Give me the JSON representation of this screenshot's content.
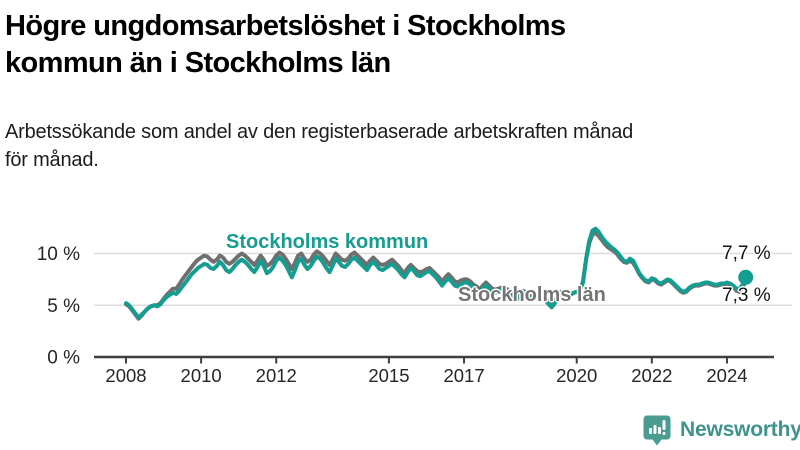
{
  "header": {
    "title_lines": [
      "Högre ungdomsarbetslöshet i Stockholms",
      "kommun än i Stockholms län"
    ],
    "subtitle_lines": [
      "Arbetssökande som andel av den registerbaserade arbetskraften månad",
      "för månad."
    ]
  },
  "chart_data": {
    "type": "line",
    "unit": "%",
    "frequency": "monthly",
    "x_start": "2008-01",
    "x_end": "2024-07",
    "ylim": [
      0,
      13
    ],
    "grid": "horizontal",
    "legend_position": "inline-labels",
    "y_ticks": [
      {
        "label": "0 %",
        "value": 0
      },
      {
        "label": "5 %",
        "value": 5
      },
      {
        "label": "10 %",
        "value": 10
      }
    ],
    "x_ticks": [
      {
        "label": "2008",
        "year": 2008
      },
      {
        "label": "2010",
        "year": 2010
      },
      {
        "label": "2012",
        "year": 2012
      },
      {
        "label": "2015",
        "year": 2015
      },
      {
        "label": "2017",
        "year": 2017
      },
      {
        "label": "2020",
        "year": 2020
      },
      {
        "label": "2022",
        "year": 2022
      },
      {
        "label": "2024",
        "year": 2024
      }
    ],
    "series": [
      {
        "id": "lan",
        "name": "Stockholms län",
        "color": "#6F6F6F",
        "end_dot": false,
        "values": [
          5.1,
          4.9,
          4.5,
          4.1,
          3.7,
          4.0,
          4.4,
          4.7,
          4.9,
          5.0,
          5.0,
          5.2,
          5.6,
          6.0,
          6.3,
          6.6,
          6.6,
          7.0,
          7.5,
          7.9,
          8.3,
          8.7,
          9.1,
          9.4,
          9.6,
          9.8,
          9.7,
          9.4,
          9.2,
          9.4,
          9.8,
          9.6,
          9.2,
          9.0,
          9.2,
          9.5,
          9.8,
          10.0,
          9.8,
          9.5,
          9.2,
          8.9,
          9.3,
          9.8,
          9.4,
          8.8,
          9.0,
          9.3,
          9.8,
          10.1,
          9.9,
          9.5,
          9.0,
          8.5,
          9.1,
          9.8,
          10.0,
          9.5,
          9.2,
          9.4,
          9.9,
          10.2,
          10.0,
          9.7,
          9.3,
          8.9,
          9.4,
          10.0,
          9.7,
          9.4,
          9.3,
          9.5,
          9.9,
          10.1,
          9.8,
          9.5,
          9.2,
          8.9,
          9.3,
          9.6,
          9.3,
          9.0,
          8.9,
          9.0,
          9.2,
          9.4,
          9.1,
          8.8,
          8.4,
          8.1,
          8.6,
          8.9,
          8.6,
          8.3,
          8.2,
          8.3,
          8.5,
          8.6,
          8.3,
          8.0,
          7.7,
          7.3,
          7.7,
          8.0,
          7.7,
          7.3,
          7.2,
          7.4,
          7.5,
          7.5,
          7.3,
          7.0,
          6.8,
          6.5,
          6.9,
          7.2,
          6.9,
          6.6,
          6.5,
          6.6,
          6.7,
          6.7,
          6.5,
          6.2,
          6.0,
          5.8,
          6.2,
          6.4,
          6.1,
          5.9,
          5.8,
          5.9,
          6.0,
          5.9,
          5.6,
          5.3,
          5.1,
          5.4,
          5.9,
          6.3,
          6.1,
          6.0,
          6.1,
          6.2,
          6.3,
          6.4,
          7.3,
          9.4,
          11.0,
          11.8,
          12.0,
          11.7,
          11.3,
          10.9,
          10.6,
          10.4,
          10.2,
          9.9,
          9.5,
          9.2,
          9.1,
          9.3,
          9.1,
          8.6,
          8.0,
          7.6,
          7.3,
          7.2,
          7.5,
          7.4,
          7.1,
          7.0,
          7.2,
          7.4,
          7.3,
          7.0,
          6.7,
          6.4,
          6.2,
          6.3,
          6.6,
          6.8,
          6.9,
          6.9,
          7.0,
          7.1,
          7.1,
          7.0,
          6.9,
          6.9,
          7.0,
          7.0,
          7.1,
          7.0,
          6.8,
          6.4,
          6.3,
          6.7,
          7.3
        ]
      },
      {
        "id": "kommun",
        "name": "Stockholms kommun",
        "color": "#149D90",
        "end_dot": true,
        "values": [
          5.2,
          5.0,
          4.6,
          4.2,
          3.8,
          4.1,
          4.4,
          4.7,
          4.9,
          5.0,
          4.9,
          5.1,
          5.5,
          5.8,
          6.0,
          6.2,
          6.1,
          6.4,
          6.8,
          7.2,
          7.6,
          8.0,
          8.3,
          8.6,
          8.8,
          9.0,
          8.9,
          8.6,
          8.5,
          8.8,
          9.2,
          8.9,
          8.4,
          8.2,
          8.5,
          8.9,
          9.2,
          9.4,
          9.2,
          8.9,
          8.5,
          8.2,
          8.7,
          9.3,
          8.8,
          8.1,
          8.3,
          8.7,
          9.3,
          9.6,
          9.3,
          8.9,
          8.3,
          7.7,
          8.4,
          9.2,
          9.5,
          8.9,
          8.5,
          8.8,
          9.3,
          9.7,
          9.5,
          9.1,
          8.6,
          8.2,
          8.8,
          9.5,
          9.2,
          8.8,
          8.7,
          9.0,
          9.4,
          9.6,
          9.3,
          9.0,
          8.7,
          8.4,
          8.9,
          9.2,
          8.9,
          8.5,
          8.4,
          8.6,
          8.8,
          9.0,
          8.7,
          8.4,
          8.0,
          7.7,
          8.2,
          8.6,
          8.3,
          7.9,
          7.8,
          8.0,
          8.2,
          8.3,
          8.0,
          7.7,
          7.3,
          6.9,
          7.3,
          7.6,
          7.3,
          6.9,
          6.8,
          7.0,
          7.2,
          7.2,
          7.0,
          6.7,
          6.4,
          6.2,
          6.6,
          6.9,
          6.6,
          6.3,
          6.2,
          6.4,
          6.5,
          6.5,
          6.3,
          6.0,
          5.8,
          5.6,
          6.0,
          6.3,
          6.0,
          5.7,
          5.6,
          5.8,
          5.9,
          5.8,
          5.5,
          5.1,
          4.8,
          5.2,
          5.8,
          6.2,
          6.0,
          5.9,
          6.0,
          6.2,
          6.3,
          6.4,
          7.2,
          9.5,
          11.2,
          12.2,
          12.4,
          12.1,
          11.6,
          11.2,
          10.9,
          10.6,
          10.4,
          10.1,
          9.7,
          9.3,
          9.2,
          9.5,
          9.3,
          8.7,
          8.1,
          7.7,
          7.4,
          7.3,
          7.6,
          7.5,
          7.2,
          7.1,
          7.3,
          7.5,
          7.4,
          7.1,
          6.8,
          6.5,
          6.3,
          6.4,
          6.7,
          6.9,
          7.0,
          7.0,
          7.1,
          7.2,
          7.2,
          7.1,
          7.0,
          7.0,
          7.1,
          7.1,
          7.2,
          7.1,
          6.9,
          6.6,
          6.6,
          7.0,
          7.7
        ]
      }
    ],
    "end_labels": {
      "kommun": "7,7 %",
      "lan": "7,3 %"
    }
  },
  "footer": {
    "brand": "Newsworthy"
  },
  "colors": {
    "kommun_line": "#149D90",
    "lan_line": "#6F6F6F",
    "gridline": "#DCDCDC",
    "axis": "#3F3F3F",
    "tick_text": "#262626",
    "logo_teal": "#3D948D"
  }
}
